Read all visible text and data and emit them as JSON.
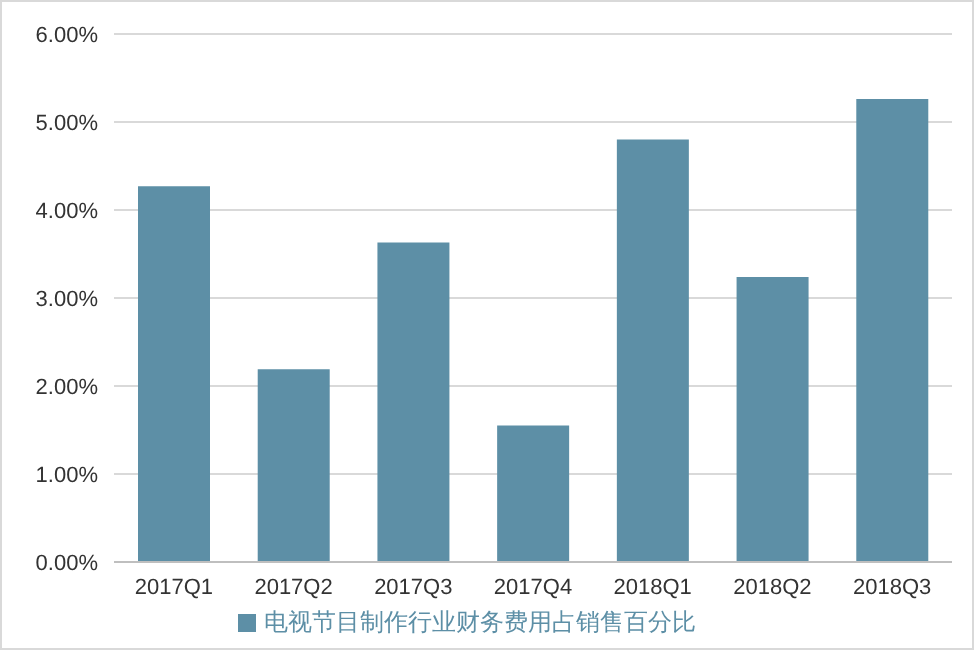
{
  "chart_data": {
    "type": "bar",
    "categories": [
      "2017Q1",
      "2017Q2",
      "2017Q3",
      "2017Q4",
      "2018Q1",
      "2018Q2",
      "2018Q3"
    ],
    "series": [
      {
        "name": "电视节目制作行业财务费用占销售百分比",
        "color": "#5d8fa6",
        "values": [
          4.27,
          2.19,
          3.63,
          1.55,
          4.8,
          3.24,
          5.26
        ]
      }
    ],
    "ylim": [
      0,
      6
    ],
    "yticks": [
      {
        "value": 0,
        "label": "0.00%"
      },
      {
        "value": 1,
        "label": "1.00%"
      },
      {
        "value": 2,
        "label": "2.00%"
      },
      {
        "value": 3,
        "label": "3.00%"
      },
      {
        "value": 4,
        "label": "4.00%"
      },
      {
        "value": 5,
        "label": "5.00%"
      },
      {
        "value": 6,
        "label": "6.00%"
      }
    ],
    "grid": "y",
    "legend": "bottom"
  }
}
